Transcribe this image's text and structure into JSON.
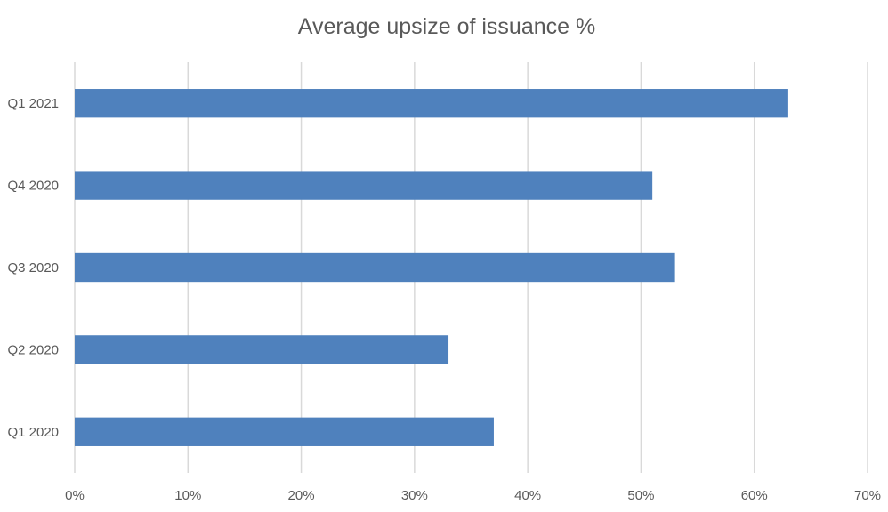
{
  "chart_data": {
    "type": "bar",
    "orientation": "horizontal",
    "title": "Average upsize of issuance %",
    "xlabel": "",
    "ylabel": "",
    "categories": [
      "Q1 2021",
      "Q4 2020",
      "Q3 2020",
      "Q2 2020",
      "Q1 2020"
    ],
    "values": [
      63,
      51,
      53,
      33,
      37
    ],
    "value_unit": "%",
    "xlim": [
      0,
      70
    ],
    "x_ticks": [
      "0%",
      "10%",
      "20%",
      "30%",
      "40%",
      "50%",
      "60%",
      "70%"
    ],
    "grid": "vertical",
    "legend": "none",
    "colors": {
      "bar": "#4f81bd",
      "grid": "#d9d9d9",
      "text": "#595959"
    }
  }
}
